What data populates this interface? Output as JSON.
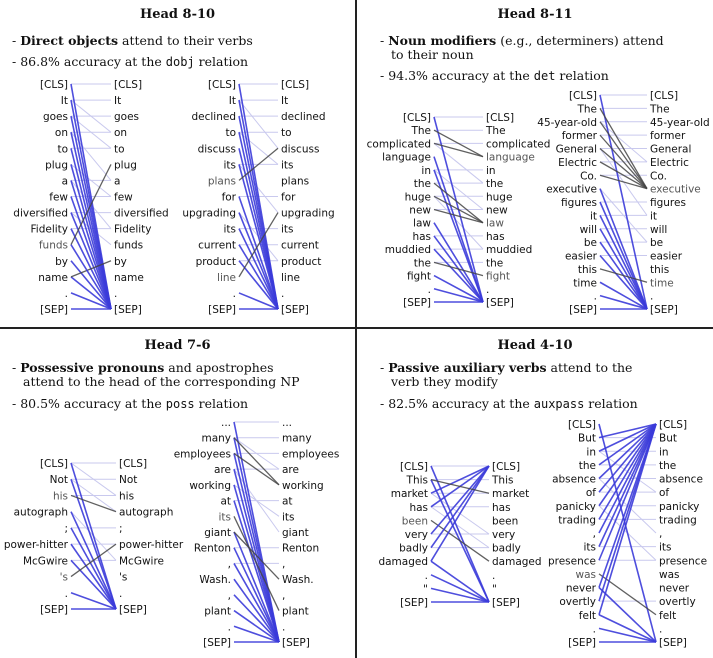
{
  "panels": [
    {
      "title": "Head 8-10",
      "bullets": [
        {
          "prefix": "- ",
          "bold": "Direct objects",
          "rest": " attend to their verbs",
          "cont": ""
        },
        {
          "prefix": "- ",
          "bold": "",
          "rest": "86.8% accuracy at the ",
          "code": "dobj",
          "tail": " relation"
        }
      ],
      "sentences": [
        {
          "tokens": [
            "[CLS]",
            "It",
            "goes",
            "on",
            "to",
            "plug",
            "a",
            "few",
            "diversified",
            "Fidelity",
            "funds",
            "by",
            "name",
            ".",
            "[SEP]"
          ],
          "highlight_left": [
            10
          ],
          "edges": [
            [
              0,
              14
            ],
            [
              1,
              14
            ],
            [
              2,
              14
            ],
            [
              3,
              14
            ],
            [
              4,
              14
            ],
            [
              5,
              14
            ],
            [
              6,
              14
            ],
            [
              7,
              14
            ],
            [
              8,
              14
            ],
            [
              9,
              14
            ],
            [
              10,
              5
            ],
            [
              11,
              14
            ],
            [
              12,
              14
            ],
            [
              13,
              14
            ],
            [
              14,
              14
            ],
            [
              12,
              11
            ],
            [
              10,
              14
            ]
          ],
          "faint": [
            [
              0,
              0
            ],
            [
              1,
              1
            ],
            [
              2,
              2
            ],
            [
              3,
              3
            ],
            [
              4,
              4
            ],
            [
              6,
              6
            ],
            [
              7,
              7
            ],
            [
              8,
              8
            ],
            [
              9,
              9
            ],
            [
              1,
              3
            ],
            [
              2,
              4
            ],
            [
              3,
              6
            ],
            [
              5,
              7
            ],
            [
              6,
              9
            ],
            [
              8,
              10
            ]
          ]
        },
        {
          "tokens": [
            "[CLS]",
            "It",
            "declined",
            "to",
            "discuss",
            "its",
            "plans",
            "for",
            "upgrading",
            "its",
            "current",
            "product",
            "line",
            ".",
            "[SEP]"
          ],
          "highlight_left": [
            6,
            12
          ],
          "edges": [
            [
              0,
              14
            ],
            [
              1,
              14
            ],
            [
              2,
              14
            ],
            [
              3,
              14
            ],
            [
              4,
              14
            ],
            [
              5,
              14
            ],
            [
              6,
              4
            ],
            [
              7,
              14
            ],
            [
              8,
              14
            ],
            [
              9,
              14
            ],
            [
              10,
              14
            ],
            [
              11,
              14
            ],
            [
              12,
              8
            ],
            [
              13,
              14
            ],
            [
              14,
              14
            ]
          ],
          "faint": [
            [
              0,
              0
            ],
            [
              1,
              1
            ],
            [
              2,
              2
            ],
            [
              3,
              3
            ],
            [
              5,
              5
            ],
            [
              7,
              7
            ],
            [
              9,
              9
            ],
            [
              10,
              10
            ],
            [
              11,
              11
            ],
            [
              1,
              4
            ],
            [
              3,
              5
            ],
            [
              5,
              8
            ],
            [
              8,
              11
            ]
          ]
        }
      ]
    },
    {
      "title": "Head 8-11",
      "bullets": [
        {
          "prefix": "- ",
          "bold": "Noun modifiers",
          "rest": " (e.g., determiners) attend",
          "cont": "to their noun"
        },
        {
          "prefix": "- ",
          "bold": "",
          "rest": "94.3% accuracy at the ",
          "code": "det",
          "tail": " relation"
        }
      ],
      "sentences": [
        {
          "tokens": [
            "[CLS]",
            "The",
            "complicated",
            "language",
            "in",
            "the",
            "huge",
            "new",
            "law",
            "has",
            "muddied",
            "the",
            "fight",
            ".",
            "[SEP]"
          ],
          "highlight_right": [
            3,
            8,
            12
          ],
          "edges": [
            [
              0,
              14
            ],
            [
              1,
              3
            ],
            [
              2,
              3
            ],
            [
              3,
              14
            ],
            [
              4,
              14
            ],
            [
              5,
              8
            ],
            [
              6,
              8
            ],
            [
              7,
              8
            ],
            [
              8,
              14
            ],
            [
              9,
              14
            ],
            [
              10,
              14
            ],
            [
              11,
              12
            ],
            [
              12,
              14
            ],
            [
              13,
              14
            ],
            [
              14,
              14
            ]
          ],
          "faint": [
            [
              0,
              0
            ],
            [
              1,
              1
            ],
            [
              2,
              2
            ],
            [
              4,
              4
            ],
            [
              5,
              5
            ],
            [
              6,
              6
            ],
            [
              7,
              7
            ],
            [
              9,
              9
            ],
            [
              10,
              10
            ],
            [
              11,
              11
            ],
            [
              2,
              5
            ],
            [
              4,
              7
            ],
            [
              6,
              10
            ]
          ]
        },
        {
          "tokens": [
            "[CLS]",
            "The",
            "45-year-old",
            "former",
            "General",
            "Electric",
            "Co.",
            "executive",
            "figures",
            "it",
            "will",
            "be",
            "easier",
            "this",
            "time",
            ".",
            "[SEP]"
          ],
          "highlight_right": [
            7,
            14
          ],
          "edges": [
            [
              0,
              16
            ],
            [
              1,
              7
            ],
            [
              2,
              7
            ],
            [
              3,
              7
            ],
            [
              4,
              7
            ],
            [
              5,
              7
            ],
            [
              6,
              7
            ],
            [
              7,
              16
            ],
            [
              8,
              16
            ],
            [
              9,
              16
            ],
            [
              10,
              16
            ],
            [
              11,
              16
            ],
            [
              12,
              16
            ],
            [
              13,
              14
            ],
            [
              14,
              16
            ],
            [
              15,
              16
            ],
            [
              16,
              16
            ]
          ],
          "faint": [
            [
              0,
              0
            ],
            [
              1,
              1
            ],
            [
              2,
              2
            ],
            [
              3,
              3
            ],
            [
              4,
              4
            ],
            [
              5,
              5
            ],
            [
              6,
              6
            ],
            [
              8,
              8
            ],
            [
              9,
              9
            ],
            [
              10,
              10
            ],
            [
              11,
              11
            ],
            [
              12,
              12
            ],
            [
              2,
              5
            ],
            [
              4,
              9
            ],
            [
              7,
              11
            ]
          ]
        }
      ]
    },
    {
      "title": "Head 7-6",
      "bullets": [
        {
          "prefix": "- ",
          "bold": "Possessive pronouns",
          "rest": " and apostrophes",
          "cont": "attend to the head of the corresponding NP"
        },
        {
          "prefix": "- ",
          "bold": "",
          "rest": "80.5% accuracy at the ",
          "code": "poss",
          "tail": " relation"
        }
      ],
      "sentences": [
        {
          "tokens": [
            "[CLS]",
            "Not",
            "his",
            "autograph",
            ";",
            "power-hitter",
            "McGwire",
            "'s",
            ".",
            "[SEP]"
          ],
          "highlight_left": [
            2,
            7
          ],
          "edges": [
            [
              0,
              9
            ],
            [
              1,
              9
            ],
            [
              2,
              3
            ],
            [
              3,
              9
            ],
            [
              4,
              9
            ],
            [
              5,
              9
            ],
            [
              6,
              9
            ],
            [
              7,
              5
            ],
            [
              8,
              9
            ],
            [
              9,
              9
            ]
          ],
          "faint": [
            [
              0,
              0
            ],
            [
              1,
              1
            ],
            [
              2,
              2
            ],
            [
              4,
              4
            ],
            [
              5,
              5
            ],
            [
              6,
              6
            ],
            [
              1,
              3
            ],
            [
              3,
              6
            ],
            [
              0,
              2
            ]
          ]
        },
        {
          "tokens": [
            "...",
            "many",
            "employees",
            "are",
            "working",
            "at",
            "its",
            "giant",
            "Renton",
            ",",
            "Wash.",
            ",",
            "plant",
            ".",
            "[SEP]"
          ],
          "highlight_left": [
            6
          ],
          "edges": [
            [
              0,
              14
            ],
            [
              1,
              14
            ],
            [
              2,
              14
            ],
            [
              3,
              14
            ],
            [
              4,
              14
            ],
            [
              5,
              14
            ],
            [
              6,
              12
            ],
            [
              7,
              14
            ],
            [
              8,
              14
            ],
            [
              9,
              14
            ],
            [
              10,
              14
            ],
            [
              11,
              14
            ],
            [
              12,
              14
            ],
            [
              13,
              14
            ],
            [
              14,
              14
            ],
            [
              1,
              4
            ],
            [
              2,
              4
            ],
            [
              7,
              10
            ]
          ],
          "faint": [
            [
              0,
              0
            ],
            [
              1,
              1
            ],
            [
              2,
              2
            ],
            [
              3,
              3
            ],
            [
              5,
              5
            ],
            [
              8,
              8
            ],
            [
              9,
              9
            ],
            [
              1,
              3
            ],
            [
              4,
              6
            ],
            [
              3,
              7
            ]
          ]
        }
      ]
    },
    {
      "title": "Head 4-10",
      "bullets": [
        {
          "prefix": "- ",
          "bold": "Passive auxiliary verbs",
          "rest": " attend to the",
          "cont": "verb they modify"
        },
        {
          "prefix": "- ",
          "bold": "",
          "rest": "82.5% accuracy at the ",
          "code": "auxpass",
          "tail": " relation"
        }
      ],
      "sentences": [
        {
          "tokens": [
            "[CLS]",
            "This",
            "market",
            "has",
            "been",
            "very",
            "badly",
            "damaged",
            ".",
            "\"",
            "[SEP]"
          ],
          "highlight_left": [
            4
          ],
          "edges": [
            [
              0,
              10
            ],
            [
              1,
              10
            ],
            [
              2,
              0
            ],
            [
              3,
              0
            ],
            [
              4,
              7
            ],
            [
              5,
              0
            ],
            [
              6,
              0
            ],
            [
              7,
              0
            ],
            [
              8,
              10
            ],
            [
              9,
              10
            ],
            [
              10,
              10
            ],
            [
              7,
              10
            ],
            [
              1,
              2
            ]
          ],
          "faint": [
            [
              0,
              0
            ],
            [
              1,
              1
            ],
            [
              2,
              2
            ],
            [
              3,
              3
            ],
            [
              5,
              5
            ],
            [
              6,
              6
            ],
            [
              2,
              5
            ],
            [
              3,
              6
            ]
          ]
        },
        {
          "tokens": [
            "[CLS]",
            "But",
            "in",
            "the",
            "absence",
            "of",
            "panicky",
            "trading",
            ",",
            "its",
            "presence",
            "was",
            "never",
            "overtly",
            "felt",
            ".",
            "[SEP]"
          ],
          "highlight_left": [
            11
          ],
          "edges": [
            [
              0,
              16
            ],
            [
              1,
              0
            ],
            [
              2,
              0
            ],
            [
              3,
              0
            ],
            [
              4,
              0
            ],
            [
              5,
              0
            ],
            [
              6,
              0
            ],
            [
              7,
              0
            ],
            [
              8,
              0
            ],
            [
              9,
              0
            ],
            [
              10,
              0
            ],
            [
              11,
              14
            ],
            [
              12,
              0
            ],
            [
              13,
              0
            ],
            [
              14,
              0
            ],
            [
              15,
              16
            ],
            [
              16,
              16
            ],
            [
              14,
              16
            ],
            [
              12,
              16
            ]
          ],
          "faint": [
            [
              1,
              1
            ],
            [
              2,
              2
            ],
            [
              3,
              3
            ],
            [
              4,
              4
            ],
            [
              5,
              5
            ],
            [
              6,
              6
            ],
            [
              7,
              7
            ],
            [
              9,
              9
            ],
            [
              10,
              10
            ],
            [
              13,
              13
            ],
            [
              2,
              5
            ],
            [
              4,
              8
            ],
            [
              6,
              10
            ]
          ]
        }
      ]
    }
  ],
  "colors": {
    "edge": "#3b3bd9",
    "edge_faint": "#c9c9ee",
    "edge_dark": "#444444",
    "token": "#111111",
    "token_highlight": "#555555"
  }
}
